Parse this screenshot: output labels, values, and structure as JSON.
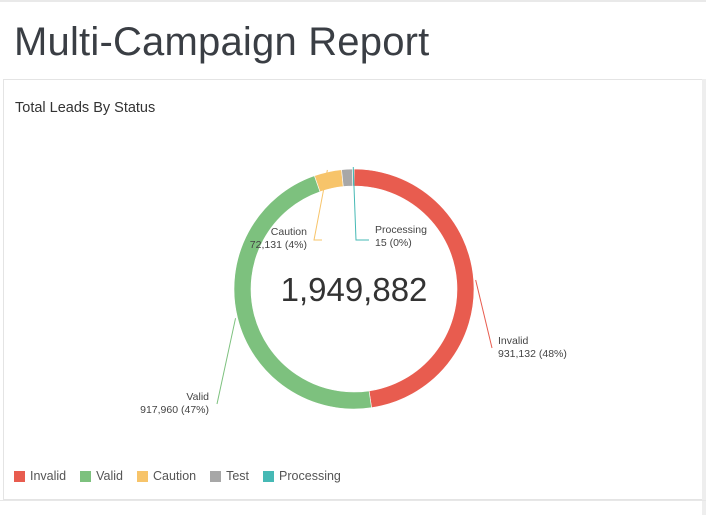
{
  "page": {
    "title": "Multi-Campaign Report"
  },
  "panel": {
    "title": "Total Leads By Status"
  },
  "colors": {
    "invalid": "#e85c4f",
    "valid": "#7dc17e",
    "caution": "#f7c46a",
    "test": "#a7a7a7",
    "processing": "#46b9b5"
  },
  "chart_data": {
    "type": "pie",
    "variant": "donut",
    "title": "Total Leads By Status",
    "center_label": "1,949,882",
    "total": 1949882,
    "legend_position": "bottom-left",
    "series": [
      {
        "name": "Invalid",
        "value": 931132,
        "label_value": "931,132 (48%)",
        "color": "#e85c4f"
      },
      {
        "name": "Valid",
        "value": 917960,
        "label_value": "917,960 (47%)",
        "color": "#7dc17e"
      },
      {
        "name": "Caution",
        "value": 72131,
        "label_value": "72,131 (4%)",
        "color": "#f7c46a"
      },
      {
        "name": "Test",
        "value": 28644,
        "color": "#a7a7a7"
      },
      {
        "name": "Processing",
        "value": 15,
        "label_value": "15 (0%)",
        "color": "#46b9b5"
      }
    ]
  },
  "legend": {
    "items": [
      {
        "label": "Invalid",
        "color": "#e85c4f"
      },
      {
        "label": "Valid",
        "color": "#7dc17e"
      },
      {
        "label": "Caution",
        "color": "#f7c46a"
      },
      {
        "label": "Test",
        "color": "#a7a7a7"
      },
      {
        "label": "Processing",
        "color": "#46b9b5"
      }
    ]
  }
}
